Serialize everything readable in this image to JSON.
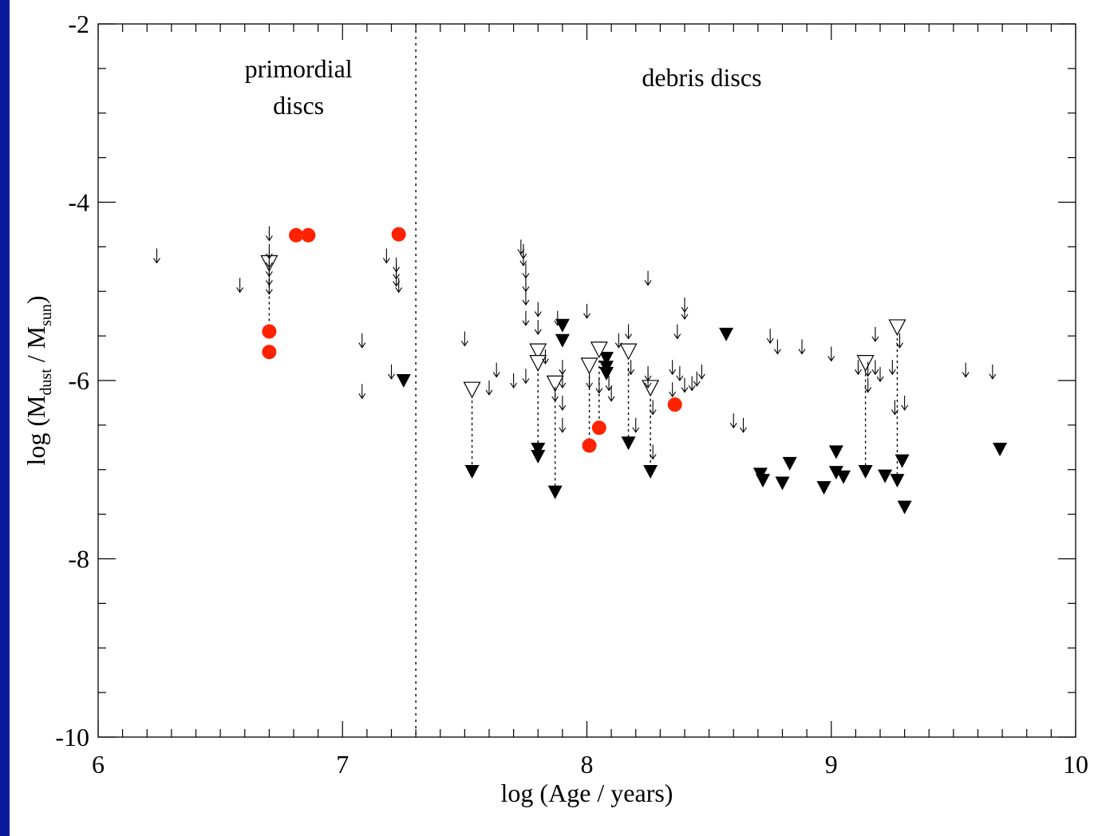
{
  "colors": {
    "background": "#0a1a9c",
    "panel": "#ffffff",
    "detection": "#ff2200",
    "ink": "#000000"
  },
  "chart_data": {
    "type": "scatter",
    "title": "",
    "xlabel": "log (Age / years)",
    "ylabel": {
      "prefix": "log (M",
      "sub1": "dust",
      "mid": " / M",
      "sub2": "sun",
      "suffix": ")"
    },
    "xlim": [
      6,
      10
    ],
    "ylim": [
      -10,
      -2
    ],
    "x_ticks": [
      "6",
      "7",
      "8",
      "9",
      "10"
    ],
    "y_ticks": [
      "-2",
      "-4",
      "-6",
      "-8",
      "-10"
    ],
    "grid": false,
    "divider_x": 7.3,
    "annotations": [
      {
        "lines": [
          "primordial",
          "discs"
        ],
        "x": 6.82,
        "y": -2.6
      },
      {
        "lines": [
          "debris discs"
        ],
        "x": 8.47,
        "y": -2.7
      }
    ],
    "series": [
      {
        "name": "",
        "marker": "filled-circle",
        "color": "#ff2200",
        "points": [
          [
            6.7,
            -5.45
          ],
          [
            6.7,
            -5.68
          ],
          [
            6.81,
            -4.37
          ],
          [
            6.86,
            -4.37
          ],
          [
            7.23,
            -4.36
          ],
          [
            8.01,
            -6.73
          ],
          [
            8.05,
            -6.53
          ],
          [
            8.36,
            -6.27
          ]
        ]
      },
      {
        "name": "",
        "marker": "filled-triangle-down",
        "color": "#000000",
        "points": [
          [
            7.25,
            -6.0
          ],
          [
            7.53,
            -7.02
          ],
          [
            7.8,
            -6.77
          ],
          [
            7.8,
            -6.85
          ],
          [
            7.87,
            -7.25
          ],
          [
            7.9,
            -5.38
          ],
          [
            7.9,
            -5.55
          ],
          [
            8.08,
            -5.75
          ],
          [
            8.08,
            -5.85
          ],
          [
            8.08,
            -5.92
          ],
          [
            8.17,
            -6.7
          ],
          [
            8.26,
            -7.02
          ],
          [
            8.57,
            -5.48
          ],
          [
            8.71,
            -7.05
          ],
          [
            8.72,
            -7.12
          ],
          [
            8.8,
            -7.15
          ],
          [
            8.83,
            -6.93
          ],
          [
            8.97,
            -7.2
          ],
          [
            9.02,
            -6.8
          ],
          [
            9.02,
            -7.03
          ],
          [
            9.05,
            -7.08
          ],
          [
            9.14,
            -7.02
          ],
          [
            9.22,
            -7.07
          ],
          [
            9.27,
            -7.12
          ],
          [
            9.29,
            -6.9
          ],
          [
            9.3,
            -7.42
          ],
          [
            9.69,
            -6.77
          ]
        ]
      },
      {
        "name": "",
        "marker": "open-triangle-down",
        "color": "#000000",
        "points": [
          [
            6.7,
            -4.68
          ],
          [
            7.53,
            -6.1
          ],
          [
            7.8,
            -5.67
          ],
          [
            7.8,
            -5.8
          ],
          [
            7.87,
            -6.03
          ],
          [
            8.01,
            -5.83
          ],
          [
            8.05,
            -5.65
          ],
          [
            8.17,
            -5.67
          ],
          [
            8.26,
            -6.08
          ],
          [
            9.14,
            -5.8
          ],
          [
            9.27,
            -5.4
          ]
        ]
      },
      {
        "name": "",
        "marker": "arrow-down",
        "color": "#000000",
        "points": [
          [
            6.24,
            -4.6
          ],
          [
            6.58,
            -4.93
          ],
          [
            6.7,
            -4.35
          ],
          [
            6.7,
            -4.55
          ],
          [
            6.7,
            -4.65
          ],
          [
            6.7,
            -4.75
          ],
          [
            6.7,
            -4.85
          ],
          [
            6.7,
            -4.95
          ],
          [
            7.08,
            -5.55
          ],
          [
            7.08,
            -6.12
          ],
          [
            7.18,
            -4.6
          ],
          [
            7.2,
            -5.9
          ],
          [
            7.22,
            -4.7
          ],
          [
            7.22,
            -4.78
          ],
          [
            7.22,
            -4.86
          ],
          [
            7.23,
            -4.93
          ],
          [
            7.5,
            -5.53
          ],
          [
            7.6,
            -6.08
          ],
          [
            7.63,
            -5.88
          ],
          [
            7.7,
            -6.0
          ],
          [
            7.73,
            -4.5
          ],
          [
            7.74,
            -4.55
          ],
          [
            7.74,
            -4.63
          ],
          [
            7.75,
            -4.77
          ],
          [
            7.75,
            -4.92
          ],
          [
            7.75,
            -5.07
          ],
          [
            7.75,
            -5.3
          ],
          [
            7.75,
            -5.95
          ],
          [
            7.8,
            -5.2
          ],
          [
            7.8,
            -5.4
          ],
          [
            7.83,
            -5.73
          ],
          [
            7.87,
            -6.15
          ],
          [
            7.88,
            -5.3
          ],
          [
            7.9,
            -5.85
          ],
          [
            7.9,
            -6.0
          ],
          [
            7.9,
            -6.25
          ],
          [
            7.9,
            -6.5
          ],
          [
            8.0,
            -5.22
          ],
          [
            8.01,
            -6.0
          ],
          [
            8.05,
            -6.06
          ],
          [
            8.09,
            -6.03
          ],
          [
            8.1,
            -6.15
          ],
          [
            8.13,
            -5.55
          ],
          [
            8.17,
            -5.45
          ],
          [
            8.18,
            -5.85
          ],
          [
            8.2,
            -6.5
          ],
          [
            8.25,
            -4.85
          ],
          [
            8.25,
            -5.92
          ],
          [
            8.25,
            -6.0
          ],
          [
            8.27,
            -6.3
          ],
          [
            8.27,
            -6.8
          ],
          [
            8.35,
            -5.85
          ],
          [
            8.35,
            -6.1
          ],
          [
            8.37,
            -5.45
          ],
          [
            8.38,
            -5.92
          ],
          [
            8.4,
            -5.15
          ],
          [
            8.4,
            -5.23
          ],
          [
            8.4,
            -6.05
          ],
          [
            8.43,
            -6.03
          ],
          [
            8.45,
            -5.98
          ],
          [
            8.47,
            -5.9
          ],
          [
            8.6,
            -6.45
          ],
          [
            8.64,
            -6.5
          ],
          [
            8.75,
            -5.5
          ],
          [
            8.78,
            -5.62
          ],
          [
            8.88,
            -5.62
          ],
          [
            9.0,
            -5.7
          ],
          [
            9.11,
            -5.85
          ],
          [
            9.15,
            -5.87
          ],
          [
            9.15,
            -6.05
          ],
          [
            9.18,
            -5.48
          ],
          [
            9.18,
            -5.85
          ],
          [
            9.2,
            -5.93
          ],
          [
            9.25,
            -5.85
          ],
          [
            9.26,
            -6.3
          ],
          [
            9.28,
            -5.55
          ],
          [
            9.3,
            -6.25
          ],
          [
            9.55,
            -5.88
          ],
          [
            9.66,
            -5.9
          ]
        ]
      }
    ],
    "links": [
      [
        6.7,
        -4.68,
        6.7,
        -5.45
      ],
      [
        7.53,
        -6.1,
        7.53,
        -7.02
      ],
      [
        7.8,
        -5.67,
        7.8,
        -6.77
      ],
      [
        7.87,
        -6.03,
        7.87,
        -7.25
      ],
      [
        8.01,
        -5.83,
        8.01,
        -6.73
      ],
      [
        8.05,
        -5.65,
        8.05,
        -6.53
      ],
      [
        8.17,
        -5.67,
        8.17,
        -6.7
      ],
      [
        8.26,
        -6.08,
        8.26,
        -7.02
      ],
      [
        9.14,
        -5.8,
        9.14,
        -7.02
      ],
      [
        9.27,
        -5.4,
        9.27,
        -7.12
      ]
    ]
  }
}
